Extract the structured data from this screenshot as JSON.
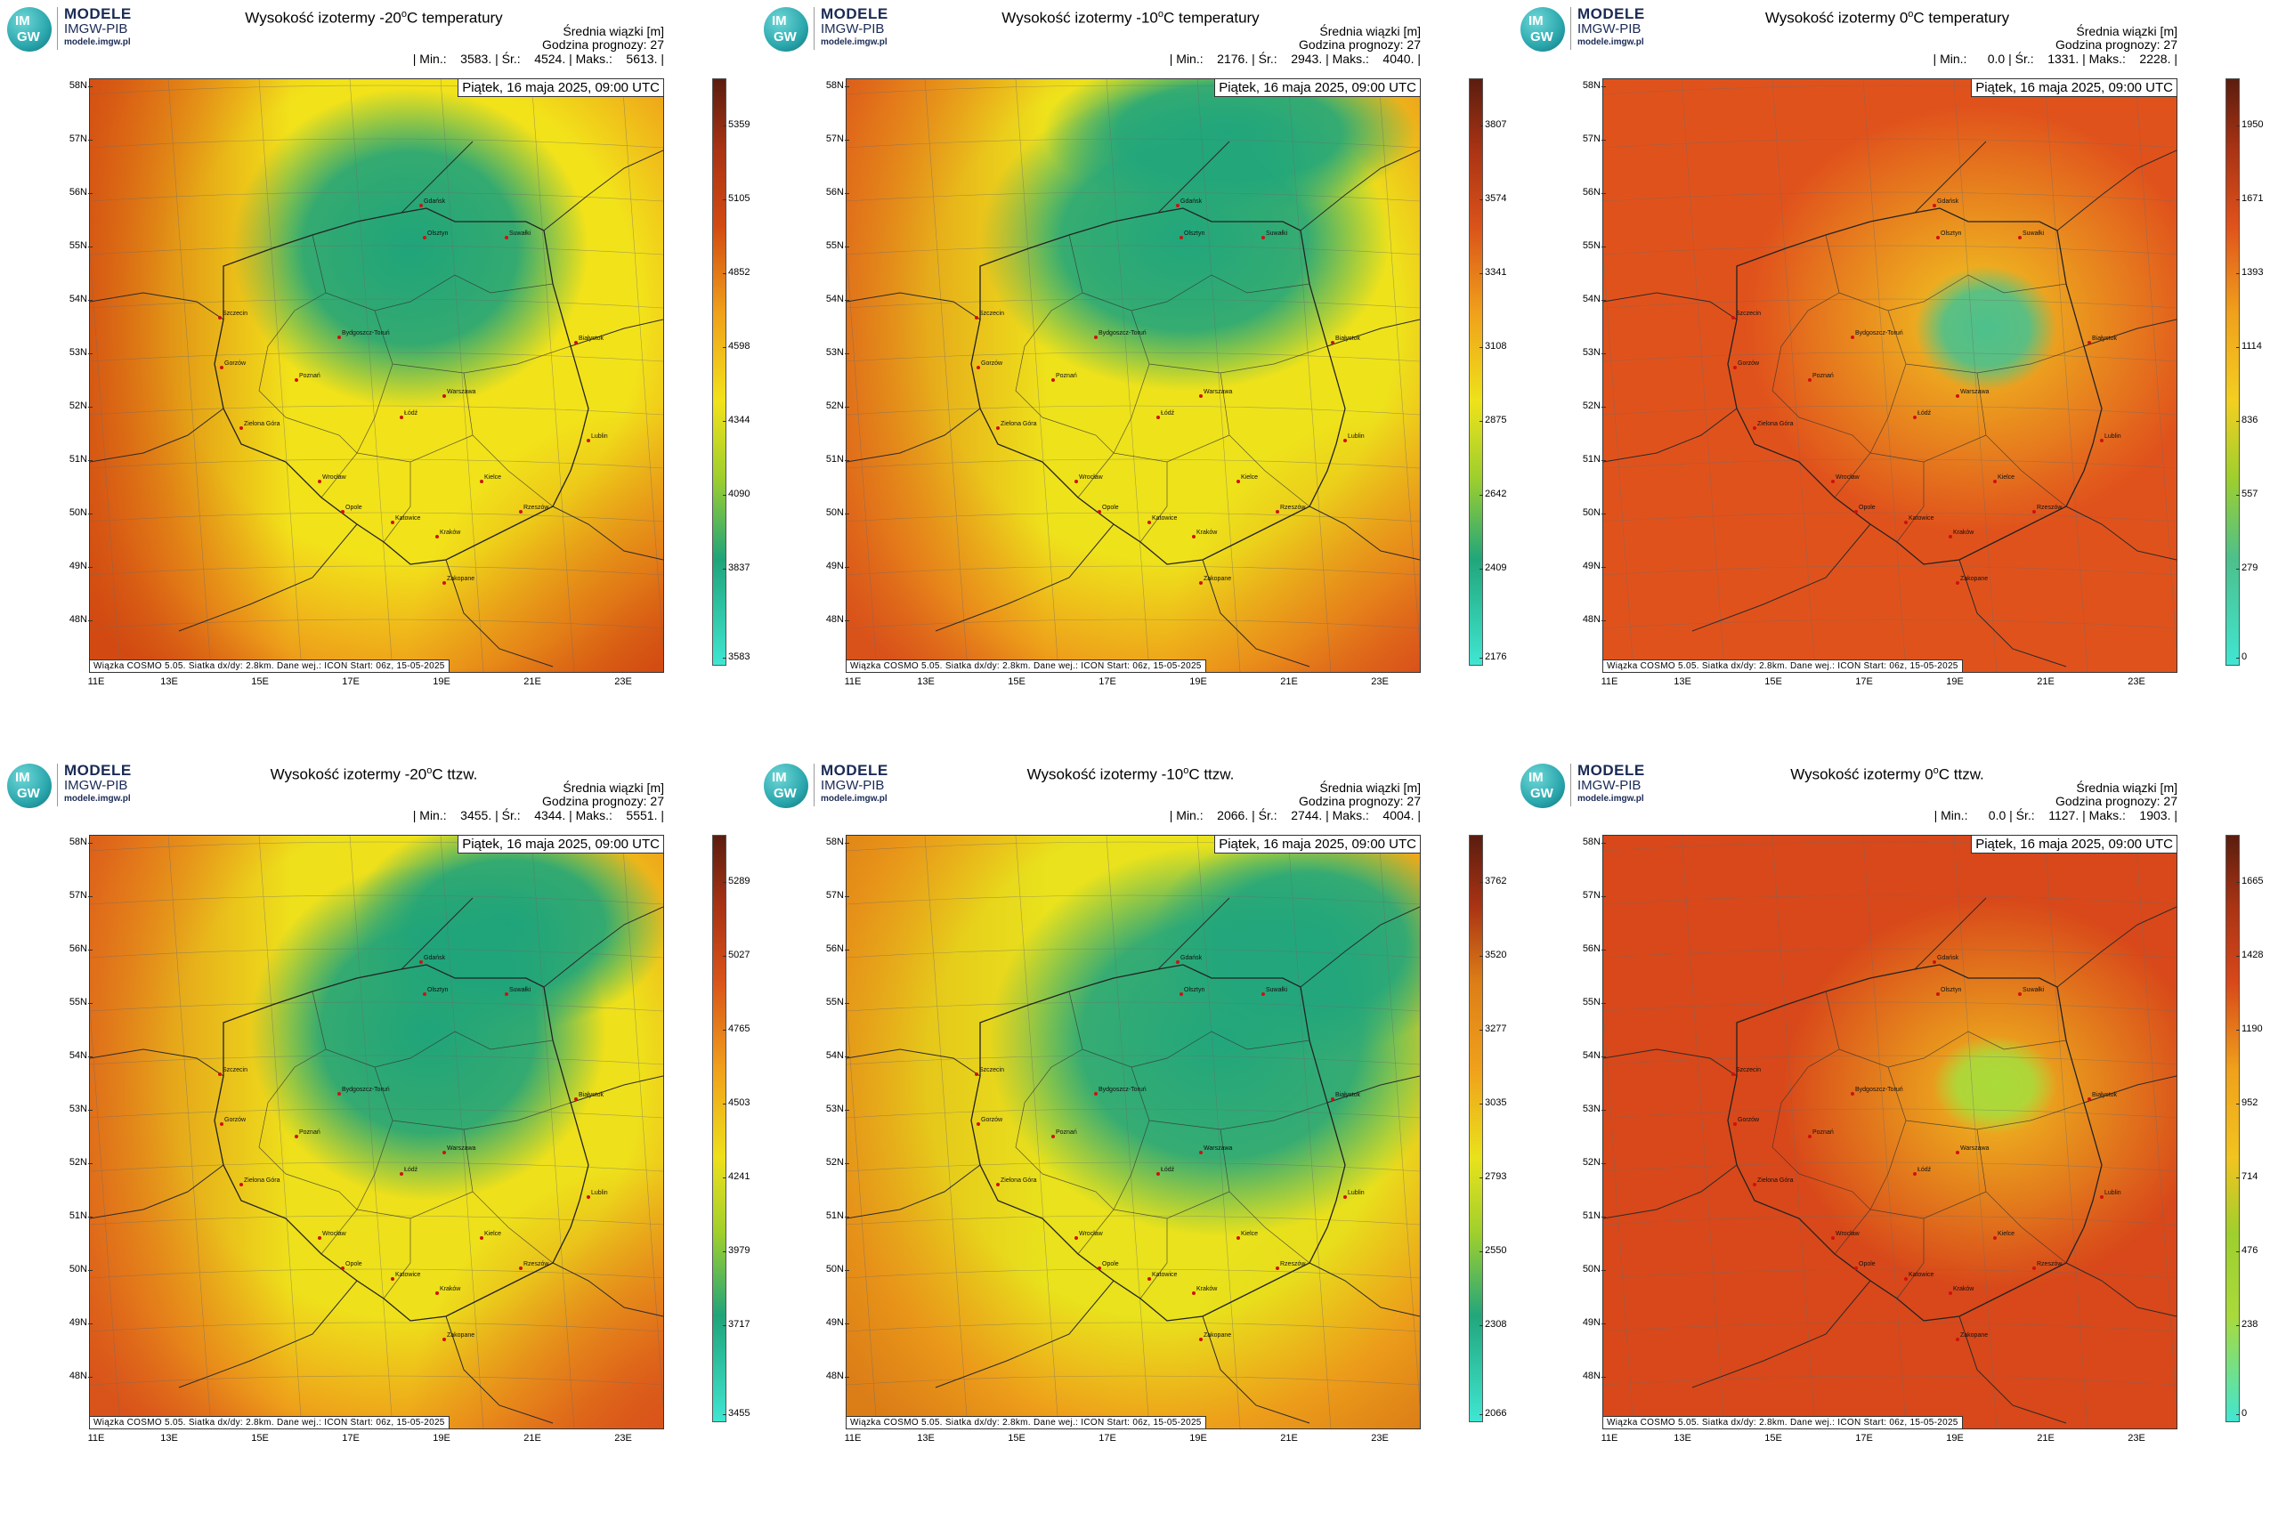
{
  "logo": {
    "circle_top": "IM",
    "circle_bottom": "GW",
    "line1": "MODELE",
    "line2": "IMGW-PIB",
    "line3": "modele.imgw.pl"
  },
  "common": {
    "date": "Piątek, 16 maja 2025, 09:00 UTC",
    "footer": "Wiązka COSMO 5.05. Siatka dx/dy: 2.8km. Dane wej.: ICON Start: 06z, 15-05-2025",
    "mean_label": "Średnia wiązki [m]",
    "forecast_label": "Godzina prognozy: 27",
    "latitudes": [
      "58N",
      "57N",
      "56N",
      "55N",
      "54N",
      "53N",
      "52N",
      "51N",
      "50N",
      "49N",
      "48N"
    ],
    "longitudes": [
      "11E",
      "13E",
      "15E",
      "17E",
      "19E",
      "21E",
      "23E"
    ],
    "cities": [
      "Gdańsk",
      "Olsztyn",
      "Suwałki",
      "Szczecin",
      "Bydgoszcz-Toruń",
      "Białystok",
      "Gorzów",
      "Poznań",
      "Warszawa",
      "Zielona Góra",
      "Łódź",
      "Lublin",
      "Wrocław",
      "Kielce",
      "Opole",
      "Rzeszów",
      "Katowice",
      "Kraków",
      "Zakopane"
    ]
  },
  "panels": [
    {
      "title_pre": "Wysokość izotermy -20",
      "title_sup": "o",
      "title_post": "C temperatury",
      "minmax": "| Min.:    3583. | Śr.:    4524. | Maks.:    5613. |",
      "colorbar": [
        "5359",
        "5105",
        "4852",
        "4598",
        "4344",
        "4090",
        "3837",
        "3583"
      ],
      "colors": {
        "low": "#1fa47a",
        "mid": "#f2e21a",
        "high": "#d24a12"
      }
    },
    {
      "title_pre": "Wysokość izotermy -10",
      "title_sup": "o",
      "title_post": "C temperatury",
      "minmax": "| Min.:    2176. | Śr.:    2943. | Maks.:    4040. |",
      "colorbar": [
        "3807",
        "3574",
        "3341",
        "3108",
        "2875",
        "2642",
        "2409",
        "2176"
      ],
      "colors": {
        "low": "#21a67b",
        "mid": "#eee21b",
        "high": "#d9521a"
      }
    },
    {
      "title_pre": "Wysokość izotermy 0",
      "title_sup": "o",
      "title_post": "C temperatury",
      "minmax": "| Min.:      0.0 | Śr.:    1331. | Maks.:    2228. |",
      "colorbar": [
        "1950",
        "1671",
        "1393",
        "1114",
        "836",
        "557",
        "279",
        "0"
      ],
      "colors": {
        "low": "#4cc08c",
        "mid": "#f3cf21",
        "high": "#e0521c"
      }
    },
    {
      "title_pre": "Wysokość izotermy -20",
      "title_sup": "o",
      "title_post": "C ttzw.",
      "minmax": "| Min.:    3455. | Śr.:    4344. | Maks.:    5551. |",
      "colorbar": [
        "5289",
        "5027",
        "4765",
        "4503",
        "4241",
        "3979",
        "3717",
        "3455"
      ],
      "colors": {
        "low": "#1fa47a",
        "mid": "#eee01b",
        "high": "#d9541a"
      }
    },
    {
      "title_pre": "Wysokość izotermy -10",
      "title_sup": "o",
      "title_post": "C ttzw.",
      "minmax": "| Min.:    2066. | Śr.:    2744. | Maks.:    4004. |",
      "colorbar": [
        "3762",
        "3520",
        "3277",
        "3035",
        "2793",
        "2550",
        "2308",
        "2066"
      ],
      "colors": {
        "low": "#22a67c",
        "mid": "#e9e21c",
        "high": "#dc7e17"
      }
    },
    {
      "title_pre": "Wysokość izotermy 0",
      "title_sup": "o",
      "title_post": "C ttzw.",
      "minmax": "| Min.:      0.0 | Śr.:    1127. | Maks.:    1903. |",
      "colorbar": [
        "1665",
        "1428",
        "1190",
        "952",
        "714",
        "476",
        "238",
        "0"
      ],
      "colors": {
        "low": "#a9da3b",
        "mid": "#f2c41f",
        "high": "#d8481a"
      }
    }
  ]
}
